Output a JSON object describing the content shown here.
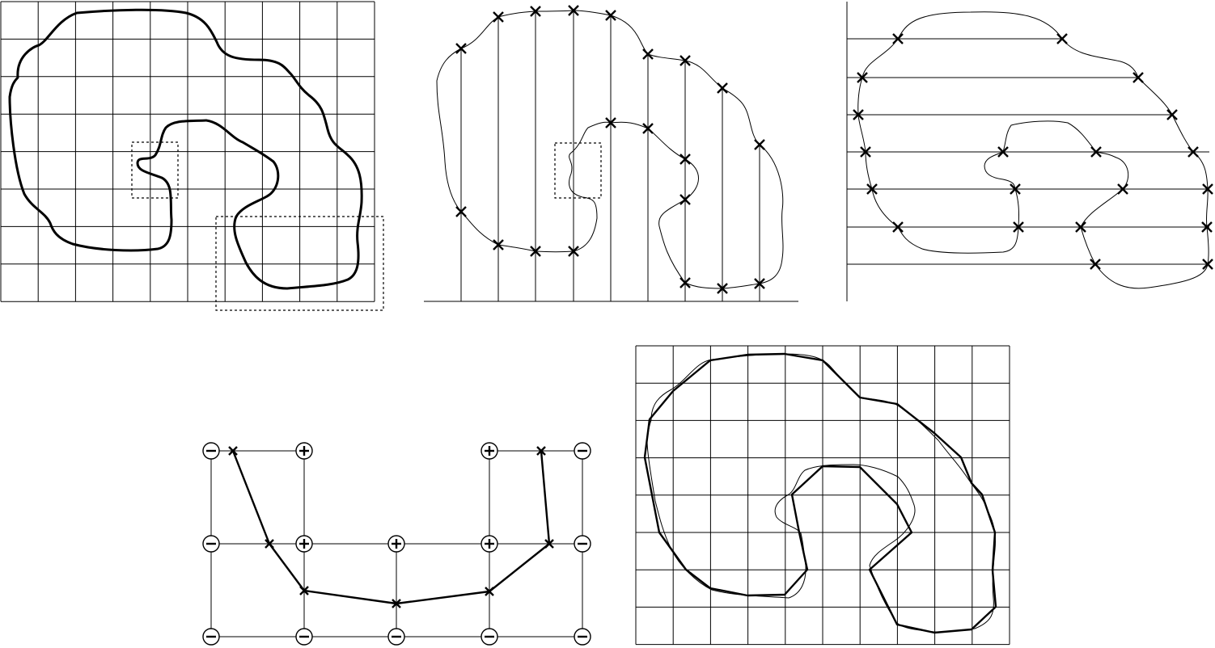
{
  "figure": {
    "panels": [
      {
        "id": "a",
        "content": "contour-on-grid"
      },
      {
        "id": "b",
        "content": "vertical-scanline-intersections"
      },
      {
        "id": "c",
        "content": "horizontal-scanline-intersections"
      },
      {
        "id": "d",
        "content": "cell-sign-interpolation"
      },
      {
        "id": "e",
        "content": "polygon-approximation"
      }
    ],
    "marker_symbol": "×",
    "sign_positive": "+",
    "sign_negative": "−",
    "colors": {
      "ink": "#000000",
      "background": "#ffffff"
    },
    "sign_grid": [
      [
        "-",
        "+",
        null,
        null,
        "+",
        "-"
      ],
      [
        "-",
        "+",
        "+",
        null,
        "+",
        "-"
      ],
      [
        "-",
        "-",
        "-",
        null,
        "-",
        "-"
      ]
    ]
  }
}
